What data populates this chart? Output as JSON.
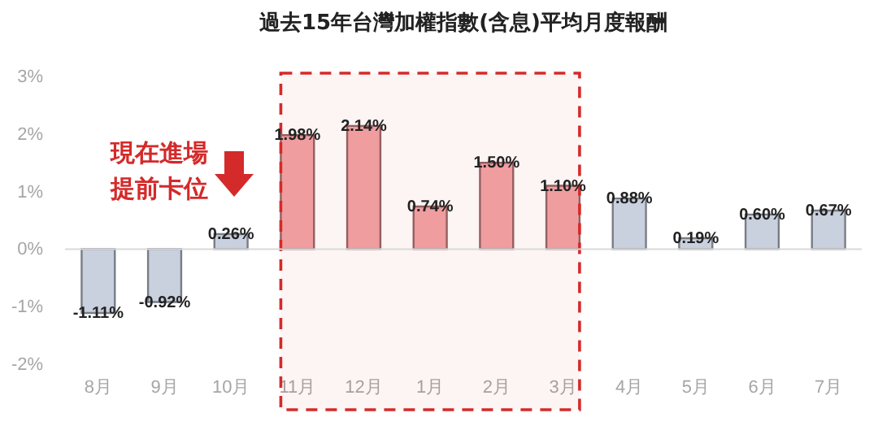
{
  "chart_data": {
    "type": "bar",
    "title": "過去15年台灣加權指數(含息)平均月度報酬",
    "categories": [
      "8月",
      "9月",
      "10月",
      "11月",
      "12月",
      "1月",
      "2月",
      "3月",
      "4月",
      "5月",
      "6月",
      "7月"
    ],
    "values": [
      -1.11,
      -0.92,
      0.26,
      1.98,
      2.14,
      0.74,
      1.5,
      1.1,
      0.88,
      0.19,
      0.6,
      0.67
    ],
    "value_labels": [
      "-1.11%",
      "-0.92%",
      "0.26%",
      "1.98%",
      "2.14%",
      "0.74%",
      "1.50%",
      "1.10%",
      "0.88%",
      "0.19%",
      "0.60%",
      "0.67%"
    ],
    "colors": [
      "#c9d0de",
      "#c9d0de",
      "#c9d0de",
      "#f2a4a6",
      "#f2a4a6",
      "#f2a4a6",
      "#f2a4a6",
      "#f2a4a6",
      "#c9d0de",
      "#c9d0de",
      "#c9d0de",
      "#c9d0de"
    ],
    "ylim": [
      -2,
      3
    ],
    "yticks": [
      {
        "value": -2,
        "label": "-2%"
      },
      {
        "value": -1,
        "label": "-1%"
      },
      {
        "value": 0,
        "label": "0%"
      },
      {
        "value": 1,
        "label": "1%"
      },
      {
        "value": 2,
        "label": "2%"
      },
      {
        "value": 3,
        "label": "3%"
      }
    ],
    "grid": false,
    "ref_lines": [
      {
        "axis": "y",
        "value": 0,
        "color": "#d9d9d9"
      }
    ],
    "bands": [
      {
        "axis": "x",
        "from": "11月",
        "to": "3月",
        "color": "#d42a2a"
      }
    ],
    "annotations": [
      "現在進場",
      "提前卡位"
    ]
  }
}
